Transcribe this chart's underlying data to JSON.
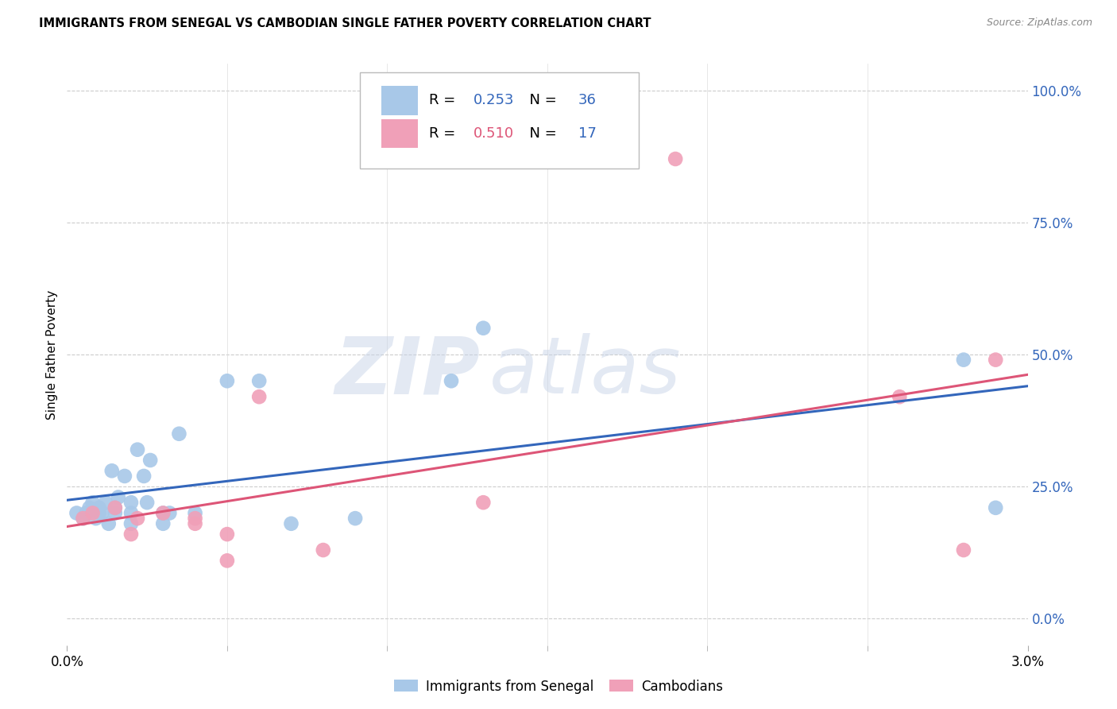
{
  "title": "IMMIGRANTS FROM SENEGAL VS CAMBODIAN SINGLE FATHER POVERTY CORRELATION CHART",
  "source": "Source: ZipAtlas.com",
  "ylabel": "Single Father Poverty",
  "ytick_labels": [
    "0.0%",
    "25.0%",
    "50.0%",
    "75.0%",
    "100.0%"
  ],
  "ytick_values": [
    0.0,
    0.25,
    0.5,
    0.75,
    1.0
  ],
  "xlim": [
    0.0,
    0.03
  ],
  "ylim": [
    -0.05,
    1.05
  ],
  "blue_R": "0.253",
  "blue_N": "36",
  "pink_R": "0.510",
  "pink_N": "17",
  "blue_color": "#A8C8E8",
  "pink_color": "#F0A0B8",
  "blue_line_color": "#3366BB",
  "pink_line_color": "#DD5577",
  "watermark_zip": "ZIP",
  "watermark_atlas": "atlas",
  "blue_points_x": [
    0.0003,
    0.0005,
    0.0006,
    0.0007,
    0.0008,
    0.0009,
    0.001,
    0.001,
    0.0011,
    0.0012,
    0.0013,
    0.0014,
    0.0015,
    0.0015,
    0.0016,
    0.0018,
    0.002,
    0.002,
    0.002,
    0.0022,
    0.0024,
    0.0025,
    0.0026,
    0.003,
    0.003,
    0.0032,
    0.0035,
    0.004,
    0.005,
    0.006,
    0.007,
    0.009,
    0.012,
    0.013,
    0.028,
    0.029
  ],
  "blue_points_y": [
    0.2,
    0.19,
    0.2,
    0.21,
    0.22,
    0.19,
    0.2,
    0.21,
    0.2,
    0.22,
    0.18,
    0.28,
    0.2,
    0.21,
    0.23,
    0.27,
    0.18,
    0.2,
    0.22,
    0.32,
    0.27,
    0.22,
    0.3,
    0.18,
    0.2,
    0.2,
    0.35,
    0.2,
    0.45,
    0.45,
    0.18,
    0.19,
    0.45,
    0.55,
    0.49,
    0.21
  ],
  "pink_points_x": [
    0.0005,
    0.0008,
    0.0015,
    0.002,
    0.0022,
    0.003,
    0.004,
    0.004,
    0.005,
    0.005,
    0.006,
    0.008,
    0.013,
    0.019,
    0.026,
    0.028,
    0.029
  ],
  "pink_points_y": [
    0.19,
    0.2,
    0.21,
    0.16,
    0.19,
    0.2,
    0.18,
    0.19,
    0.16,
    0.11,
    0.42,
    0.13,
    0.22,
    0.87,
    0.42,
    0.13,
    0.49
  ],
  "legend_label_blue": "Immigrants from Senegal",
  "legend_label_pink": "Cambodians",
  "xtick_minor": [
    0.005,
    0.01,
    0.015,
    0.02,
    0.025
  ],
  "hgrid_values": [
    0.0,
    0.25,
    0.5,
    0.75,
    1.0
  ]
}
